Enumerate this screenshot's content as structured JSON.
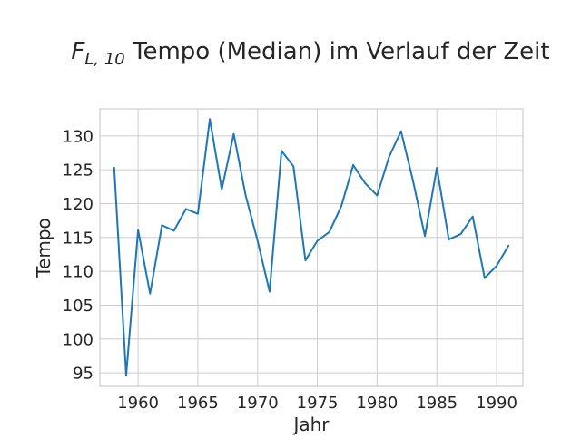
{
  "chart_data": {
    "type": "line",
    "title_symbol": "F",
    "title_subscript": "L, 10",
    "title_rest": " Tempo (Median) im Verlauf der Zeit",
    "xlabel": "Jahr",
    "ylabel": "Tempo",
    "xlim": [
      1956.8,
      1992.2
    ],
    "ylim": [
      93,
      134
    ],
    "x_ticks": [
      1960,
      1965,
      1970,
      1975,
      1980,
      1985,
      1990
    ],
    "y_ticks": [
      95,
      100,
      105,
      110,
      115,
      120,
      125,
      130
    ],
    "grid": true,
    "line_color": "#1f77b4",
    "x": [
      1958,
      1959,
      1960,
      1961,
      1962,
      1963,
      1964,
      1965,
      1966,
      1967,
      1968,
      1969,
      1970,
      1971,
      1972,
      1973,
      1974,
      1975,
      1976,
      1977,
      1978,
      1979,
      1980,
      1981,
      1982,
      1983,
      1984,
      1985,
      1986,
      1987,
      1988,
      1989,
      1990,
      1991
    ],
    "series": [
      {
        "values": [
          125.3,
          94.6,
          116.1,
          106.7,
          116.8,
          116.0,
          119.2,
          118.5,
          132.5,
          122.1,
          130.3,
          121.2,
          114.5,
          107.0,
          127.8,
          125.5,
          111.6,
          114.5,
          115.8,
          119.6,
          125.7,
          123.0,
          121.2,
          126.9,
          130.7,
          123.4,
          115.2,
          125.3,
          114.7,
          115.5,
          118.1,
          109.0,
          110.8,
          113.8
        ]
      }
    ]
  }
}
